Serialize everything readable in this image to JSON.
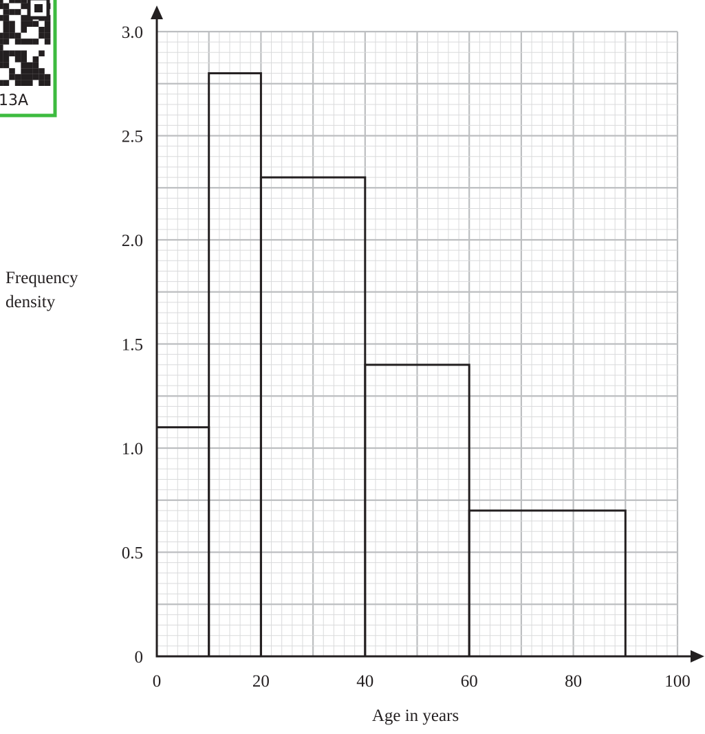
{
  "badge": {
    "code": "13A",
    "accent_color": "#3dbb3f",
    "icon": "qr-code-icon"
  },
  "chart_data": {
    "type": "bar",
    "variant": "histogram",
    "title": "",
    "xlabel": "Age in years",
    "ylabel_lines": [
      "Frequency",
      "density"
    ],
    "xlim": [
      0,
      100
    ],
    "ylim": [
      0,
      3.0
    ],
    "x_ticks": [
      0,
      20,
      40,
      60,
      80,
      100
    ],
    "x_tick_labels": [
      "0",
      "20",
      "40",
      "60",
      "80",
      "100"
    ],
    "y_ticks": [
      0,
      0.5,
      1.0,
      1.5,
      2.0,
      2.5,
      3.0
    ],
    "y_tick_labels": [
      "0",
      "0.5",
      "1.0",
      "1.5",
      "2.0",
      "2.5",
      "3.0"
    ],
    "grid": true,
    "grid_major_x": 10,
    "grid_major_y": 0.25,
    "grid_minor_x": 2,
    "grid_minor_y": 0.05,
    "bins": [
      {
        "x0": 0,
        "x1": 10,
        "value": 1.1
      },
      {
        "x0": 10,
        "x1": 20,
        "value": 2.8
      },
      {
        "x0": 20,
        "x1": 40,
        "value": 2.3
      },
      {
        "x0": 40,
        "x1": 60,
        "value": 1.4
      },
      {
        "x0": 60,
        "x1": 90,
        "value": 0.7
      }
    ],
    "colors": {
      "grid_major": "#bcbec0",
      "grid_minor": "#d9dadb",
      "bar_stroke": "#231f20"
    }
  }
}
